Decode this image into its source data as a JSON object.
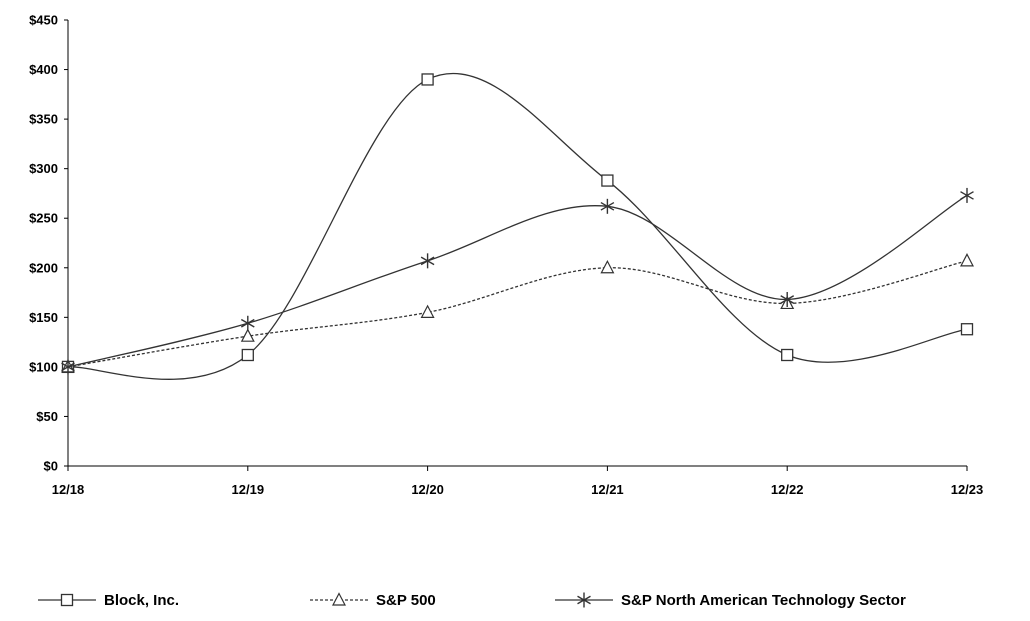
{
  "chart_data": {
    "type": "line",
    "title": "",
    "xlabel": "",
    "ylabel": "",
    "categories": [
      "12/18",
      "12/19",
      "12/20",
      "12/21",
      "12/22",
      "12/23"
    ],
    "ylim": [
      0,
      450
    ],
    "y_ticks": [
      0,
      50,
      100,
      150,
      200,
      250,
      300,
      350,
      400,
      450
    ],
    "y_tick_labels": [
      "$0",
      "$50",
      "$100",
      "$150",
      "$200",
      "$250",
      "$300",
      "$350",
      "$400",
      "$450"
    ],
    "grid": false,
    "legend_position": "bottom",
    "series": [
      {
        "name": "Block, Inc.",
        "values": [
          100,
          112,
          390,
          288,
          112,
          138
        ],
        "marker": "square",
        "line_style": "solid",
        "smooth": true,
        "color": "#333333"
      },
      {
        "name": "S&P 500",
        "values": [
          100,
          131,
          155,
          200,
          164,
          207
        ],
        "marker": "triangle",
        "line_style": "dashed",
        "smooth": true,
        "color": "#333333"
      },
      {
        "name": "S&P North American Technology Sector",
        "values": [
          100,
          144,
          207,
          262,
          168,
          273
        ],
        "marker": "asterisk",
        "line_style": "solid",
        "smooth": true,
        "color": "#333333"
      }
    ]
  }
}
